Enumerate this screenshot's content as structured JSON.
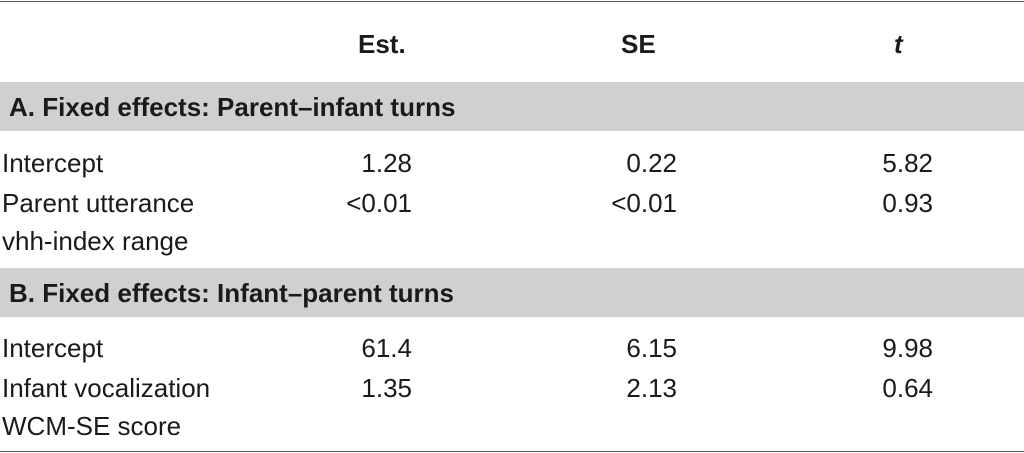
{
  "header": {
    "col_est": "Est.",
    "col_se": "SE",
    "col_t": "t"
  },
  "sections": [
    {
      "title": "A. Fixed effects: Parent–infant turns",
      "rows": [
        {
          "label_lines": [
            "Intercept"
          ],
          "est": "1.28",
          "se": "0.22",
          "t": "5.82"
        },
        {
          "label_lines": [
            "Parent utterance",
            "vhh-index range"
          ],
          "est": "<0.01",
          "se": "<0.01",
          "t": "0.93"
        }
      ]
    },
    {
      "title": "B. Fixed effects: Infant–parent turns",
      "rows": [
        {
          "label_lines": [
            "Intercept"
          ],
          "est": "61.4",
          "se": "6.15",
          "t": "9.98"
        },
        {
          "label_lines": [
            "Infant vocalization",
            "WCM-SE score"
          ],
          "est": "1.35",
          "se": "2.13",
          "t": "0.64"
        }
      ]
    }
  ]
}
